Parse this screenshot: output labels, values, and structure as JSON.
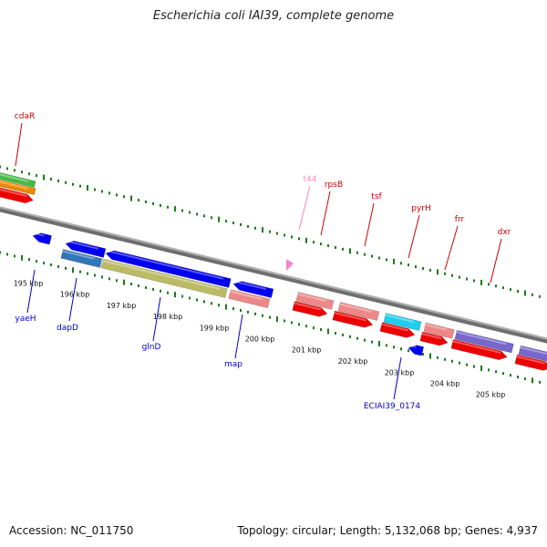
{
  "title": "Escherichia coli IAI39, complete genome",
  "accession_label": "Accession: NC_011750",
  "summary_label": "Topology: circular; Length: 5,132,068 bp; Genes: 4,937",
  "colors": {
    "backbone": "#8a8a8a",
    "gc_tick": "#1a7a1a",
    "label_forward": "#cc0000",
    "label_reverse": "#0000cc",
    "label_trna": "#ff88bb"
  },
  "kbp_labels": [
    "195 kbp",
    "196 kbp",
    "197 kbp",
    "198 kbp",
    "199 kbp",
    "200 kbp",
    "201 kbp",
    "202 kbp",
    "203 kbp",
    "204 kbp",
    "205 kbp"
  ],
  "features": [
    {
      "id": "cdaR",
      "label": "cdaR",
      "strand": "forward",
      "color": "red"
    },
    {
      "id": "t44",
      "label": "t44",
      "strand": "forward",
      "color": "pink"
    },
    {
      "id": "rpsB",
      "label": "rpsB",
      "strand": "forward",
      "color": "red"
    },
    {
      "id": "tsf",
      "label": "tsf",
      "strand": "forward",
      "color": "red"
    },
    {
      "id": "pyrH",
      "label": "pyrH",
      "strand": "forward",
      "color": "red"
    },
    {
      "id": "frr",
      "label": "frr",
      "strand": "forward",
      "color": "red"
    },
    {
      "id": "dxr",
      "label": "dxr",
      "strand": "forward",
      "color": "red"
    },
    {
      "id": "yaeH",
      "label": "yaeH",
      "strand": "reverse",
      "color": "blue"
    },
    {
      "id": "dapD",
      "label": "dapD",
      "strand": "reverse",
      "color": "blue"
    },
    {
      "id": "glnD",
      "label": "glnD",
      "strand": "reverse",
      "color": "blue"
    },
    {
      "id": "map",
      "label": "map",
      "strand": "reverse",
      "color": "blue"
    },
    {
      "id": "ECIAI39_0174",
      "label": "ECIAI39_0174",
      "strand": "reverse",
      "color": "blue"
    }
  ]
}
